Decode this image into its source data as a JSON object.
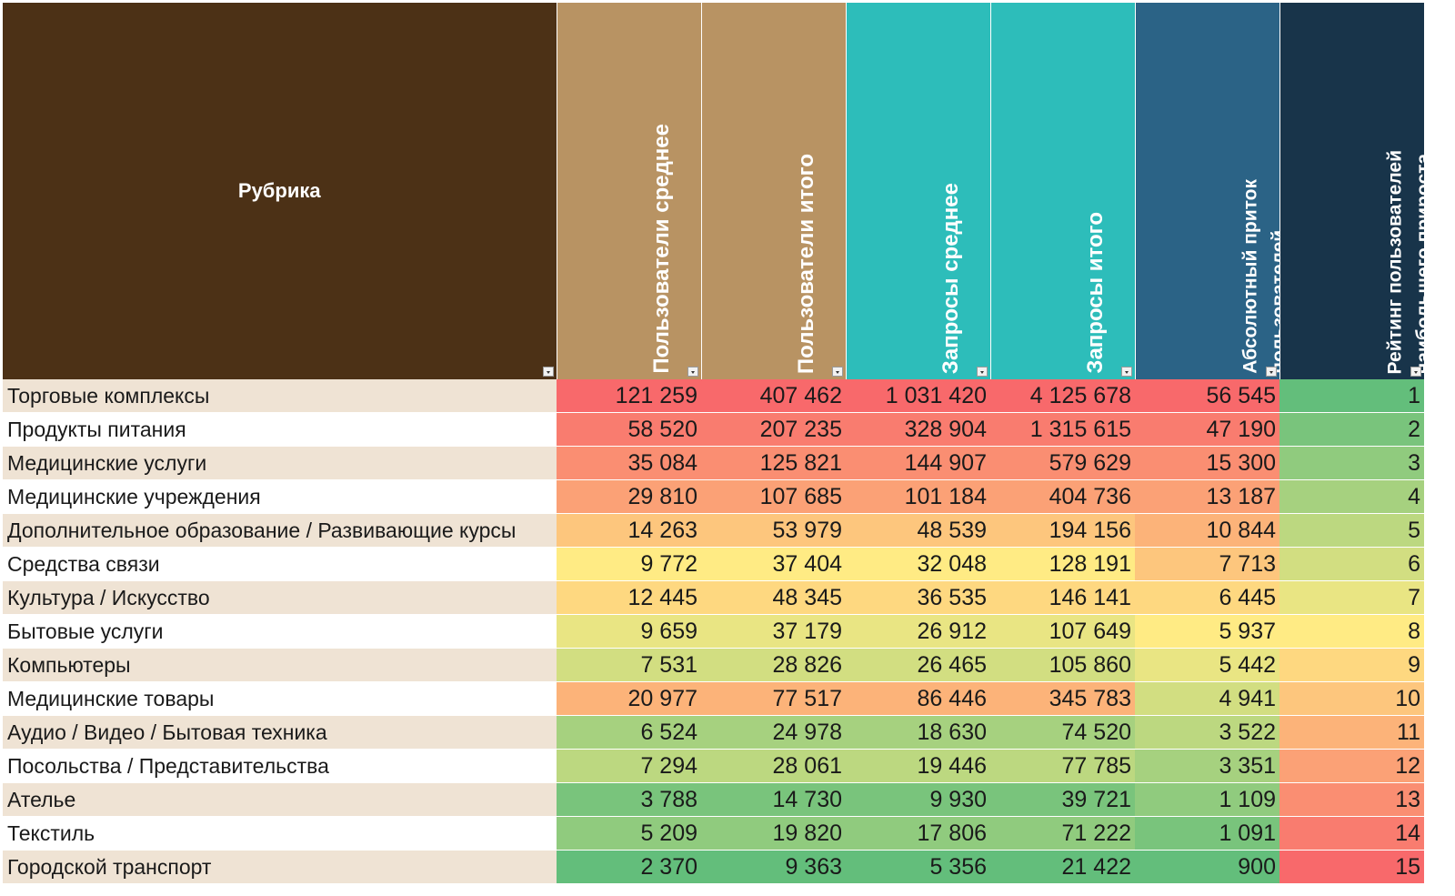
{
  "header": {
    "rubric": "Рубрика",
    "columns": [
      {
        "label": "Пользователи среднее",
        "color": "#b89363"
      },
      {
        "label": "Пользователи итого",
        "color": "#b89363"
      },
      {
        "label": "Запросы среднее",
        "color": "#2dbdba"
      },
      {
        "label": "Запросы итого",
        "color": "#2dbdba"
      },
      {
        "label": "Абсолютный приток\nпользователей",
        "color": "#2b6386"
      },
      {
        "label": "Рейтинг пользователей\nнаибольшего прироста",
        "color": "#18344a"
      }
    ],
    "rubric_color": "#4c3116"
  },
  "rows": [
    {
      "label": "Торговые комплексы",
      "values": [
        "121 259",
        "407 462",
        "1 031 420",
        "4 125 678",
        "56 545",
        "1"
      ]
    },
    {
      "label": "Продукты питания",
      "values": [
        "58 520",
        "207 235",
        "328 904",
        "1 315 615",
        "47 190",
        "2"
      ]
    },
    {
      "label": "Медицинские услуги",
      "values": [
        "35 084",
        "125 821",
        "144 907",
        "579 629",
        "15 300",
        "3"
      ]
    },
    {
      "label": "Медицинские учреждения",
      "values": [
        "29 810",
        "107 685",
        "101 184",
        "404 736",
        "13 187",
        "4"
      ]
    },
    {
      "label": "Дополнительное образование / Развивающие курсы",
      "values": [
        "14 263",
        "53 979",
        "48 539",
        "194 156",
        "10 844",
        "5"
      ]
    },
    {
      "label": "Средства связи",
      "values": [
        "9 772",
        "37 404",
        "32 048",
        "128 191",
        "7 713",
        "6"
      ]
    },
    {
      "label": "Культура / Искусство",
      "values": [
        "12 445",
        "48 345",
        "36 535",
        "146 141",
        "6 445",
        "7"
      ]
    },
    {
      "label": "Бытовые услуги",
      "values": [
        "9 659",
        "37 179",
        "26 912",
        "107 649",
        "5 937",
        "8"
      ]
    },
    {
      "label": "Компьютеры",
      "values": [
        "7 531",
        "28 826",
        "26 465",
        "105 860",
        "5 442",
        "9"
      ]
    },
    {
      "label": "Медицинские товары",
      "values": [
        "20 977",
        "77 517",
        "86 446",
        "345 783",
        "4 941",
        "10"
      ]
    },
    {
      "label": "Аудио / Видео / Бытовая техника",
      "values": [
        "6 524",
        "24 978",
        "18 630",
        "74 520",
        "3 522",
        "11"
      ]
    },
    {
      "label": "Посольства / Представительства",
      "values": [
        "7 294",
        "28 061",
        "19 446",
        "77 785",
        "3 351",
        "12"
      ]
    },
    {
      "label": "Ателье",
      "values": [
        "3 788",
        "14 730",
        "9 930",
        "39 721",
        "1 109",
        "13"
      ]
    },
    {
      "label": "Текстиль",
      "values": [
        "5 209",
        "19 820",
        "17 806",
        "71 222",
        "1 091",
        "14"
      ]
    },
    {
      "label": "Городской транспорт",
      "values": [
        "2 370",
        "9 363",
        "5 356",
        "21 422",
        "900",
        "15"
      ]
    }
  ],
  "colors": {
    "scale_high": "#f8696b",
    "scale_mid": "#ffeb84",
    "scale_low": "#63be7b"
  },
  "icons": {
    "filter": "filter-dropdown-icon"
  }
}
